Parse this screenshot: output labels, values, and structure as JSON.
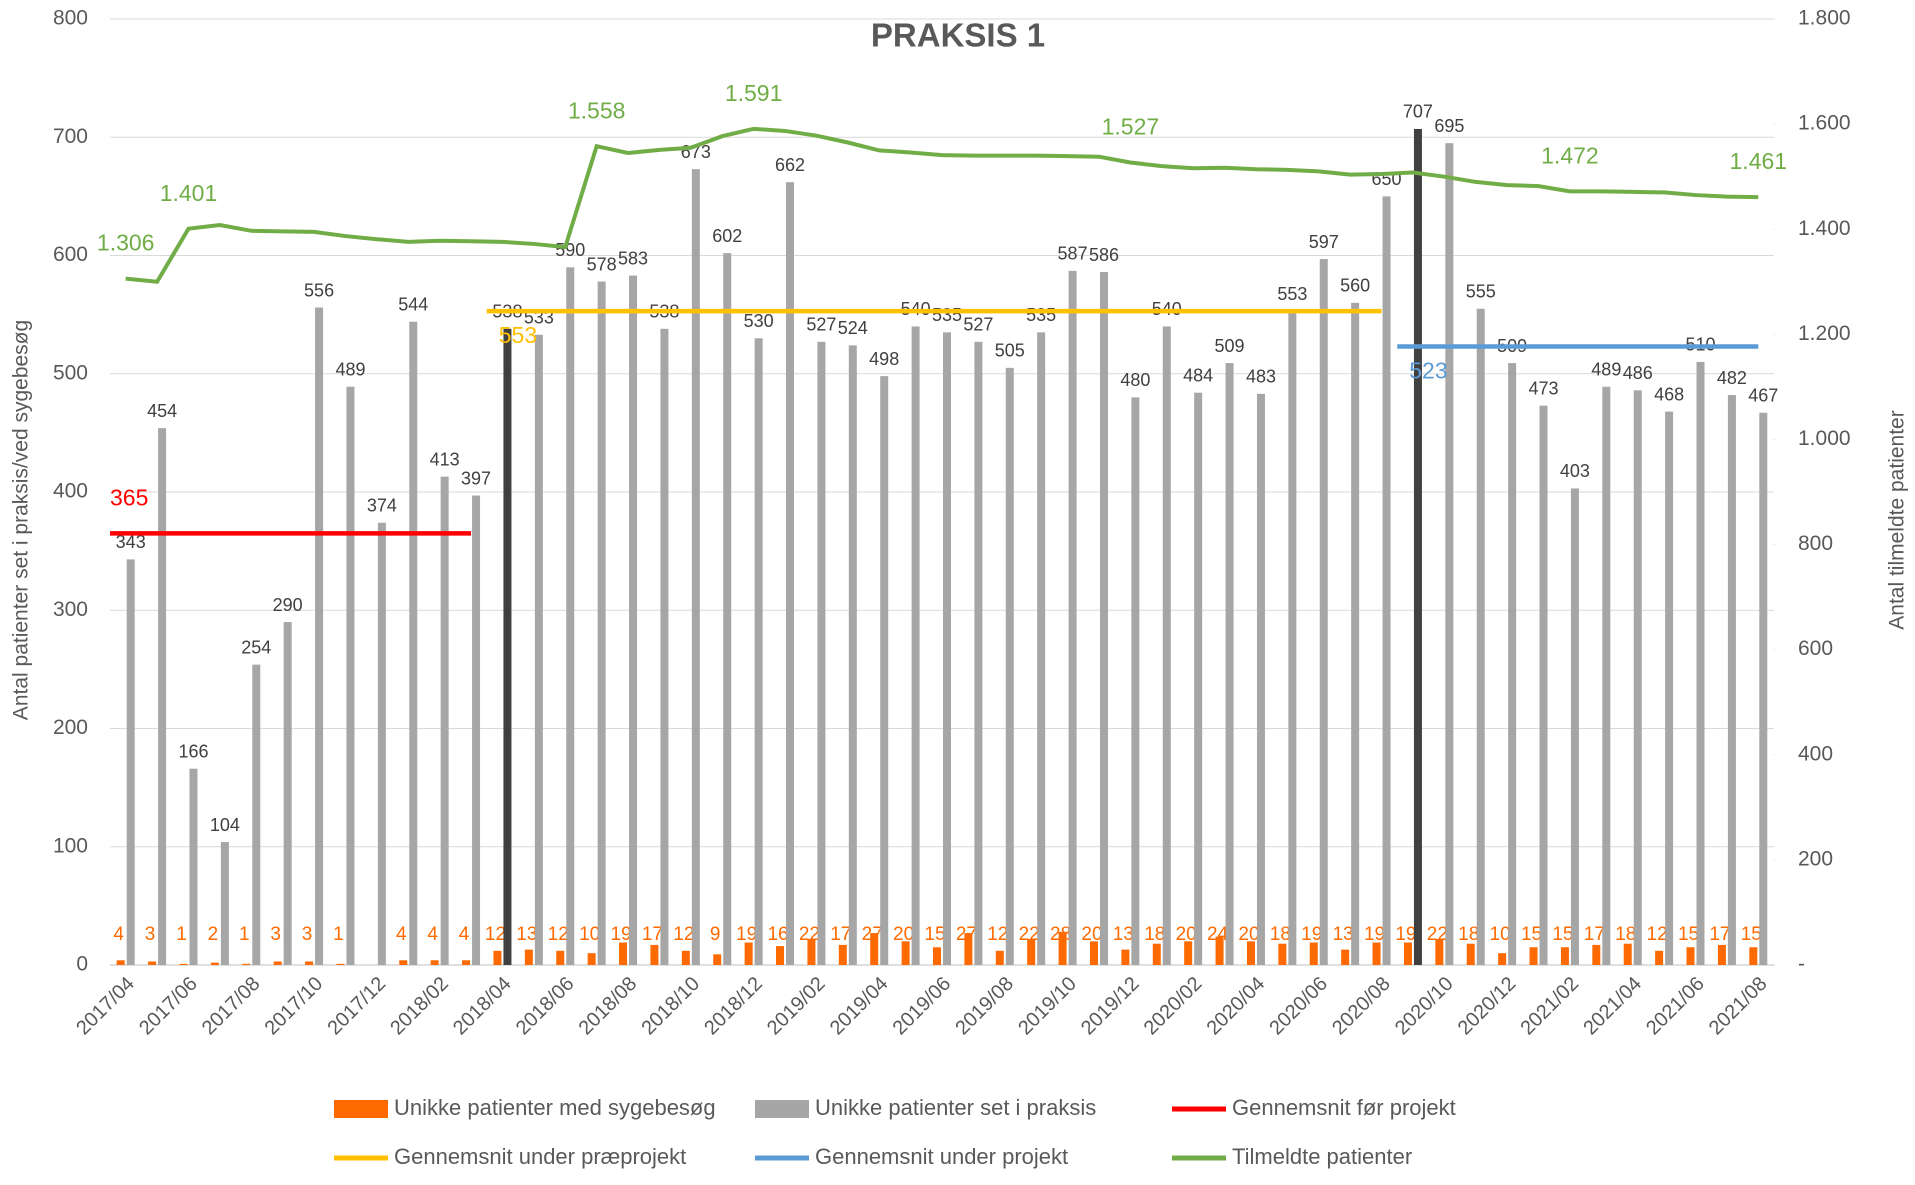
{
  "chart_data": {
    "type": "bar",
    "title": "PRAKSIS 1",
    "y_label": "Antal patienter set i praksis/ved sygebesøg",
    "y2_label": "Antal tilmeldte patienter",
    "categories": [
      "2017/04",
      null,
      "2017/06",
      null,
      "2017/08",
      null,
      "2017/10",
      null,
      "2017/12",
      null,
      "2018/02",
      null,
      "2018/04",
      null,
      "2018/06",
      null,
      "2018/08",
      null,
      "2018/10",
      null,
      "2018/12",
      null,
      "2019/02",
      null,
      "2019/04",
      null,
      "2019/06",
      null,
      "2019/08",
      null,
      "2019/10",
      null,
      "2019/12",
      null,
      "2020/02",
      null,
      "2020/04",
      null,
      "2020/06",
      null,
      "2020/08",
      null,
      "2020/10",
      null,
      "2020/12",
      null,
      "2021/02",
      null,
      "2021/04",
      null,
      "2021/06",
      null,
      "2021/08"
    ],
    "ylim": [
      0,
      800
    ],
    "yticks": [
      0,
      100,
      200,
      300,
      400,
      500,
      600,
      700,
      800
    ],
    "y2lim": [
      0,
      1800
    ],
    "y2ticks": [
      {
        "value": 0,
        "label": "-"
      },
      200,
      400,
      600,
      800,
      {
        "value": 1000,
        "label": "1.000"
      },
      {
        "value": 1200,
        "label": "1.200"
      },
      {
        "value": 1400,
        "label": "1.400"
      },
      {
        "value": 1600,
        "label": "1.600"
      },
      {
        "value": 1800,
        "label": "1.800"
      }
    ],
    "grid": true,
    "legend": "bottom",
    "series": [
      {
        "name": "Unikke patienter med sygebesøg",
        "type": "bar",
        "color": "#ff6a00",
        "values": [
          4,
          3,
          1,
          2,
          1,
          3,
          3,
          1,
          null,
          4,
          4,
          4,
          12,
          13,
          12,
          10,
          19,
          17,
          12,
          9,
          19,
          16,
          22,
          17,
          27,
          20,
          15,
          27,
          12,
          22,
          28,
          20,
          13,
          18,
          20,
          24,
          20,
          18,
          19,
          13,
          19,
          19,
          22,
          18,
          10,
          15,
          15,
          17,
          18,
          12,
          15,
          17,
          15
        ]
      },
      {
        "name": "Unikke patienter set i praksis",
        "type": "bar",
        "color": "#a6a6a6",
        "colors": [
          "#a6a6a6",
          "#a6a6a6",
          "#a6a6a6",
          "#a6a6a6",
          "#a6a6a6",
          "#a6a6a6",
          "#a6a6a6",
          "#a6a6a6",
          "#a6a6a6",
          "#a6a6a6",
          "#a6a6a6",
          "#a6a6a6",
          "#404040",
          "#a6a6a6",
          "#a6a6a6",
          "#a6a6a6",
          "#a6a6a6",
          "#a6a6a6",
          "#a6a6a6",
          "#a6a6a6",
          "#a6a6a6",
          "#a6a6a6",
          "#a6a6a6",
          "#a6a6a6",
          "#a6a6a6",
          "#a6a6a6",
          "#a6a6a6",
          "#a6a6a6",
          "#a6a6a6",
          "#a6a6a6",
          "#a6a6a6",
          "#a6a6a6",
          "#a6a6a6",
          "#a6a6a6",
          "#a6a6a6",
          "#a6a6a6",
          "#a6a6a6",
          "#a6a6a6",
          "#a6a6a6",
          "#a6a6a6",
          "#a6a6a6",
          "#404040",
          "#a6a6a6",
          "#a6a6a6",
          "#a6a6a6",
          "#a6a6a6",
          "#a6a6a6",
          "#a6a6a6",
          "#a6a6a6",
          "#a6a6a6",
          "#a6a6a6",
          "#a6a6a6",
          "#a6a6a6"
        ],
        "values": [
          343,
          454,
          166,
          104,
          254,
          290,
          556,
          489,
          374,
          544,
          413,
          397,
          538,
          533,
          590,
          578,
          583,
          538,
          673,
          602,
          530,
          662,
          527,
          524,
          498,
          540,
          535,
          527,
          505,
          535,
          587,
          586,
          480,
          540,
          484,
          509,
          483,
          553,
          597,
          560,
          650,
          707,
          695,
          555,
          509,
          473,
          403,
          489,
          486,
          468,
          510,
          482,
          467
        ]
      },
      {
        "name": "Gennemsnit før projekt",
        "type": "line",
        "color": "#ff0000",
        "values": [
          365,
          365,
          365,
          365,
          365,
          365,
          365,
          365,
          365,
          365,
          365,
          365,
          null,
          null,
          null,
          null,
          null,
          null,
          null,
          null,
          null,
          null,
          null,
          null,
          null,
          null,
          null,
          null,
          null,
          null,
          null,
          null,
          null,
          null,
          null,
          null,
          null,
          null,
          null,
          null,
          null,
          null,
          null,
          null,
          null,
          null,
          null,
          null,
          null,
          null,
          null,
          null,
          null
        ]
      },
      {
        "name": "Gennemsnit under præprojekt",
        "type": "line",
        "color": "#ffc000",
        "values": [
          null,
          null,
          null,
          null,
          null,
          null,
          null,
          null,
          null,
          null,
          null,
          null,
          553,
          553,
          553,
          553,
          553,
          553,
          553,
          553,
          553,
          553,
          553,
          553,
          553,
          553,
          553,
          553,
          553,
          553,
          553,
          553,
          553,
          553,
          553,
          553,
          553,
          553,
          553,
          553,
          553,
          null,
          null,
          null,
          null,
          null,
          null,
          null,
          null,
          null,
          null,
          null,
          null
        ]
      },
      {
        "name": "Gennemsnit under projekt",
        "type": "line",
        "color": "#5b9bd5",
        "values": [
          null,
          null,
          null,
          null,
          null,
          null,
          null,
          null,
          null,
          null,
          null,
          null,
          null,
          null,
          null,
          null,
          null,
          null,
          null,
          null,
          null,
          null,
          null,
          null,
          null,
          null,
          null,
          null,
          null,
          null,
          null,
          null,
          null,
          null,
          null,
          null,
          null,
          null,
          null,
          null,
          null,
          523,
          523,
          523,
          523,
          523,
          523,
          523,
          523,
          523,
          523,
          523,
          523
        ]
      },
      {
        "name": "Tilmeldte patienter",
        "type": "line",
        "color": "#70ad47",
        "axis": "y2",
        "values": [
          1306,
          1300,
          1401,
          1408,
          1397,
          1396,
          1395,
          1387,
          1381,
          1376,
          1378,
          1377,
          1376,
          1372,
          1366,
          1558,
          1545,
          1551,
          1555,
          1577,
          1591,
          1587,
          1578,
          1565,
          1550,
          1546,
          1541,
          1540,
          1540,
          1540,
          1539,
          1538,
          1527,
          1520,
          1516,
          1517,
          1514,
          1513,
          1510,
          1504,
          1505,
          1508,
          1500,
          1490,
          1484,
          1482,
          1472,
          1472,
          1471,
          1470,
          1465,
          1462,
          1461
        ],
        "value_labels": [
          "1.306",
          null,
          "1.401",
          null,
          null,
          null,
          null,
          null,
          null,
          null,
          null,
          null,
          null,
          null,
          null,
          "1.558",
          null,
          null,
          null,
          null,
          "1.591",
          null,
          null,
          null,
          null,
          null,
          null,
          null,
          null,
          null,
          null,
          null,
          "1.527",
          null,
          null,
          null,
          null,
          null,
          null,
          null,
          null,
          null,
          null,
          null,
          null,
          null,
          "1.472",
          null,
          null,
          null,
          null,
          null,
          "1.461"
        ]
      }
    ]
  }
}
